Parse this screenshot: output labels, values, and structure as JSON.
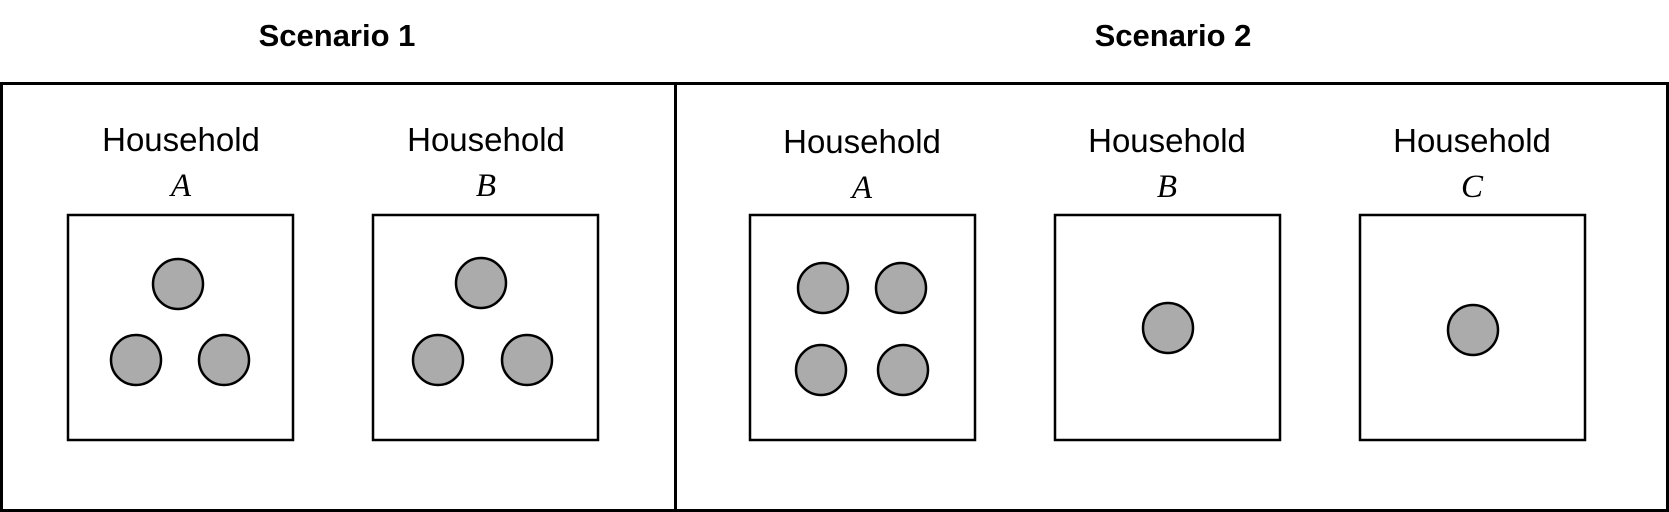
{
  "colors": {
    "member_fill": "#ababab",
    "stroke": "#000000",
    "background": "#ffffff"
  },
  "scenarios": [
    {
      "title": "Scenario 1",
      "households": [
        {
          "label": "Household",
          "letter": "A",
          "members": 3
        },
        {
          "label": "Household",
          "letter": "B",
          "members": 3
        }
      ]
    },
    {
      "title": "Scenario 2",
      "households": [
        {
          "label": "Household",
          "letter": "A",
          "members": 4
        },
        {
          "label": "Household",
          "letter": "B",
          "members": 1
        },
        {
          "label": "Household",
          "letter": "C",
          "members": 1
        }
      ]
    }
  ]
}
